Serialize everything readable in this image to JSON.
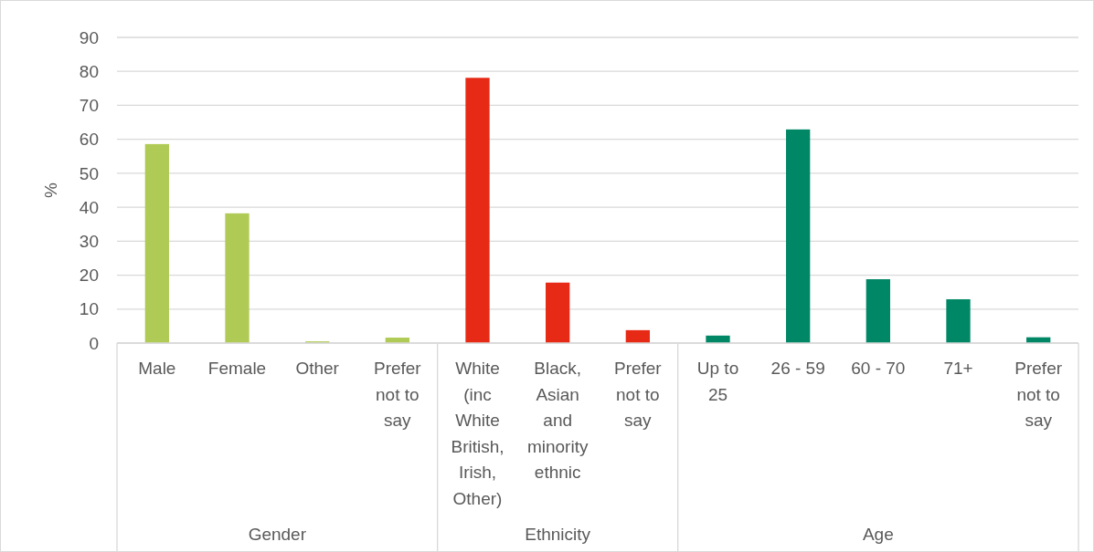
{
  "chart_data": {
    "type": "bar",
    "ylabel": "%",
    "categories": [
      "Male",
      "Female",
      "Other",
      "Prefer\nnot to\nsay",
      "White\n(inc\nWhite\nBritish,\nIrish,\nOther)",
      "Black,\nAsian\nand\nminority\nethnic",
      "Prefer\nnot to\nsay",
      "Up to\n25",
      "26 - 59",
      "60 - 70",
      "71+",
      "Prefer\nnot to\nsay"
    ],
    "values": [
      58.6,
      38.2,
      0.5,
      1.6,
      78.1,
      17.8,
      3.8,
      2.2,
      62.9,
      18.8,
      12.9,
      1.7
    ],
    "colors": [
      "#b0cb55",
      "#b0cb55",
      "#b0cb55",
      "#b0cb55",
      "#e62a16",
      "#e62a16",
      "#e62a16",
      "#008766",
      "#008766",
      "#008766",
      "#008766",
      "#008766"
    ],
    "annotations": [
      "Gender",
      "Ethnicity",
      "Age"
    ],
    "ylim": [
      0,
      90
    ],
    "yticks": [
      0,
      10,
      20,
      30,
      40,
      50,
      60,
      70,
      80,
      90
    ],
    "grid": "y"
  }
}
